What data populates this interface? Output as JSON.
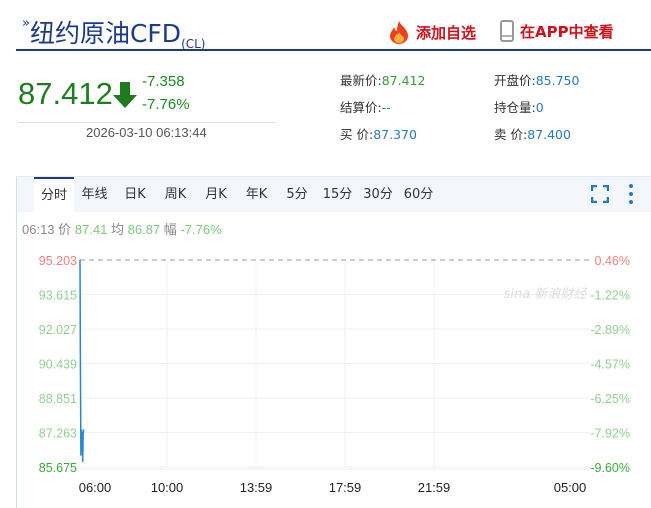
{
  "header": {
    "symbol_mark": "»",
    "title": "纽约原油CFD",
    "code": "(CL)",
    "add_watch": "添加自选",
    "view_app": "在APP中查看"
  },
  "quote": {
    "price": "87.412",
    "change": "-7.358",
    "change_pct": "-7.76%",
    "datetime": "2026-03-10 06:13:44",
    "fields": [
      {
        "label": "最新价:",
        "value": "87.412",
        "tone": "g"
      },
      {
        "label": "开盘价:",
        "value": "85.750",
        "tone": "v"
      },
      {
        "label": "结算价:",
        "value": "--",
        "tone": "v"
      },
      {
        "label": "持仓量:",
        "value": "0",
        "tone": "v"
      },
      {
        "label": "买  价:",
        "value": "87.370",
        "tone": "v"
      },
      {
        "label": "卖  价:",
        "value": "87.400",
        "tone": "v"
      }
    ]
  },
  "tabs": [
    "分时",
    "年线",
    "日K",
    "周K",
    "月K",
    "年K",
    "5分",
    "15分",
    "30分",
    "60分"
  ],
  "active_tab": 0,
  "info": {
    "time": "06:13",
    "price_label": "价",
    "price": "87.41",
    "avg_label": "均",
    "avg": "86.87",
    "amp_label": "幅",
    "amp": "-7.76%"
  },
  "watermark": "sina 新浪财经",
  "colors": {
    "up": "#f08080",
    "down": "#3a9a3a",
    "line": "#2a86c8",
    "title": "#1b3a8c",
    "action": "#d0101a"
  },
  "chart_data": {
    "type": "line",
    "y_ticks": [
      "95.203",
      "93.615",
      "92.027",
      "90.439",
      "88.851",
      "87.263",
      "85.675"
    ],
    "y_right_ticks": [
      "0.46%",
      "-1.22%",
      "-2.89%",
      "-4.57%",
      "-6.25%",
      "-7.92%",
      "-9.60%"
    ],
    "x_ticks": [
      "06:00",
      "10:00",
      "13:59",
      "17:59",
      "21:59",
      "05:00"
    ],
    "ylim": [
      85.675,
      95.203
    ],
    "reference_price": 95.203,
    "series": [
      {
        "values": [
          95.203,
          90.0,
          86.2,
          87.4,
          86.8,
          87.3,
          85.9,
          87.2,
          87.41
        ]
      }
    ]
  }
}
